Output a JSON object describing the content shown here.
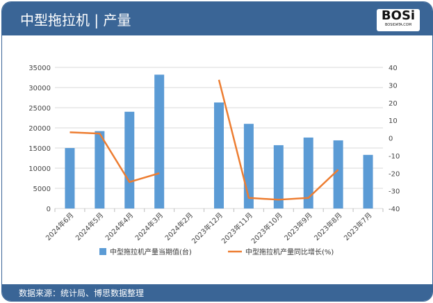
{
  "header": {
    "title": "中型拖拉机 | 产量",
    "logo_text": "BOSi",
    "logo_sub": "BOSIDATA.COM"
  },
  "footer": {
    "source": "数据来源：统计局、博思数据整理"
  },
  "colors": {
    "header": "#3a6596",
    "bar": "#5b9bd5",
    "line": "#ed7d31"
  },
  "chart_data": {
    "type": "bar+line",
    "categories": [
      "2024年6月",
      "2024年5月",
      "2024年4月",
      "2024年3月",
      "2024年2月",
      "2023年12月",
      "2023年11月",
      "2023年10月",
      "2023年9月",
      "2023年8月",
      "2023年7月"
    ],
    "series": [
      {
        "name": "中型拖拉机产量当期值(台)",
        "type": "bar",
        "axis": "left",
        "values": [
          15000,
          19200,
          24000,
          33200,
          null,
          26300,
          21000,
          15700,
          17600,
          16900,
          13300
        ]
      },
      {
        "name": "中型拖拉机产量同比增长(%)",
        "type": "line",
        "axis": "right",
        "values": [
          3.2,
          2.5,
          -25,
          -20,
          null,
          33,
          -34,
          -35,
          -34,
          -18,
          null
        ]
      }
    ],
    "left_axis": {
      "range": [
        0,
        35000
      ],
      "ticks": [
        0,
        5000,
        10000,
        15000,
        20000,
        25000,
        30000,
        35000
      ]
    },
    "right_axis": {
      "range": [
        -40,
        40
      ],
      "ticks": [
        -40,
        -30,
        -20,
        -10,
        0,
        10,
        20,
        30,
        40
      ]
    },
    "grid": true,
    "legend": "bottom"
  }
}
